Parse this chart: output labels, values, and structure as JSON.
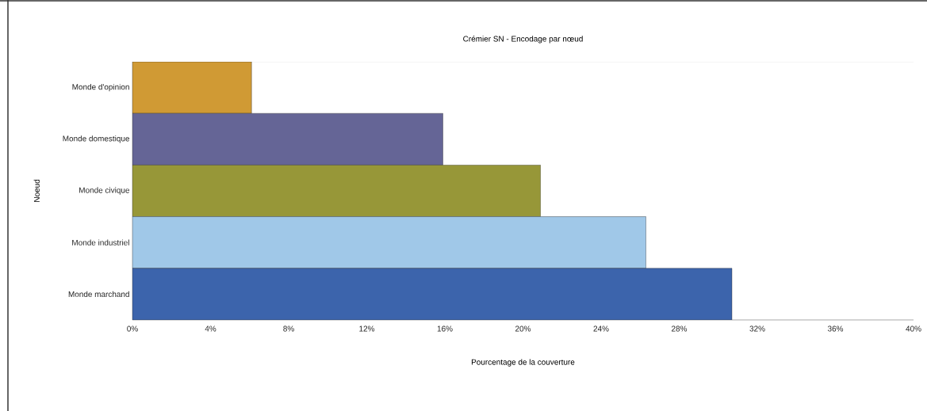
{
  "chart_data": {
    "type": "bar",
    "orientation": "horizontal",
    "title": "Crémier SN - Encodage par nœud",
    "xlabel": "Pourcentage de la couverture",
    "ylabel": "Noeud",
    "categories": [
      "Monde d'opinion",
      "Monde domestique",
      "Monde civique",
      "Monde industriel",
      "Monde marchand"
    ],
    "values": [
      6.1,
      15.9,
      20.9,
      26.3,
      30.7
    ],
    "colors": [
      "#d09a34",
      "#656596",
      "#979738",
      "#a0c8e8",
      "#3c64ac"
    ],
    "xlim": [
      0,
      40
    ],
    "xticks": [
      {
        "value": 0,
        "label": "0%"
      },
      {
        "value": 4,
        "label": "4%"
      },
      {
        "value": 8,
        "label": "8%"
      },
      {
        "value": 12,
        "label": "12%"
      },
      {
        "value": 16,
        "label": "16%"
      },
      {
        "value": 20,
        "label": "20%"
      },
      {
        "value": 24,
        "label": "24%"
      },
      {
        "value": 28,
        "label": "28%"
      },
      {
        "value": 32,
        "label": "32%"
      },
      {
        "value": 36,
        "label": "36%"
      },
      {
        "value": 40,
        "label": "40%"
      }
    ],
    "grid": false
  }
}
